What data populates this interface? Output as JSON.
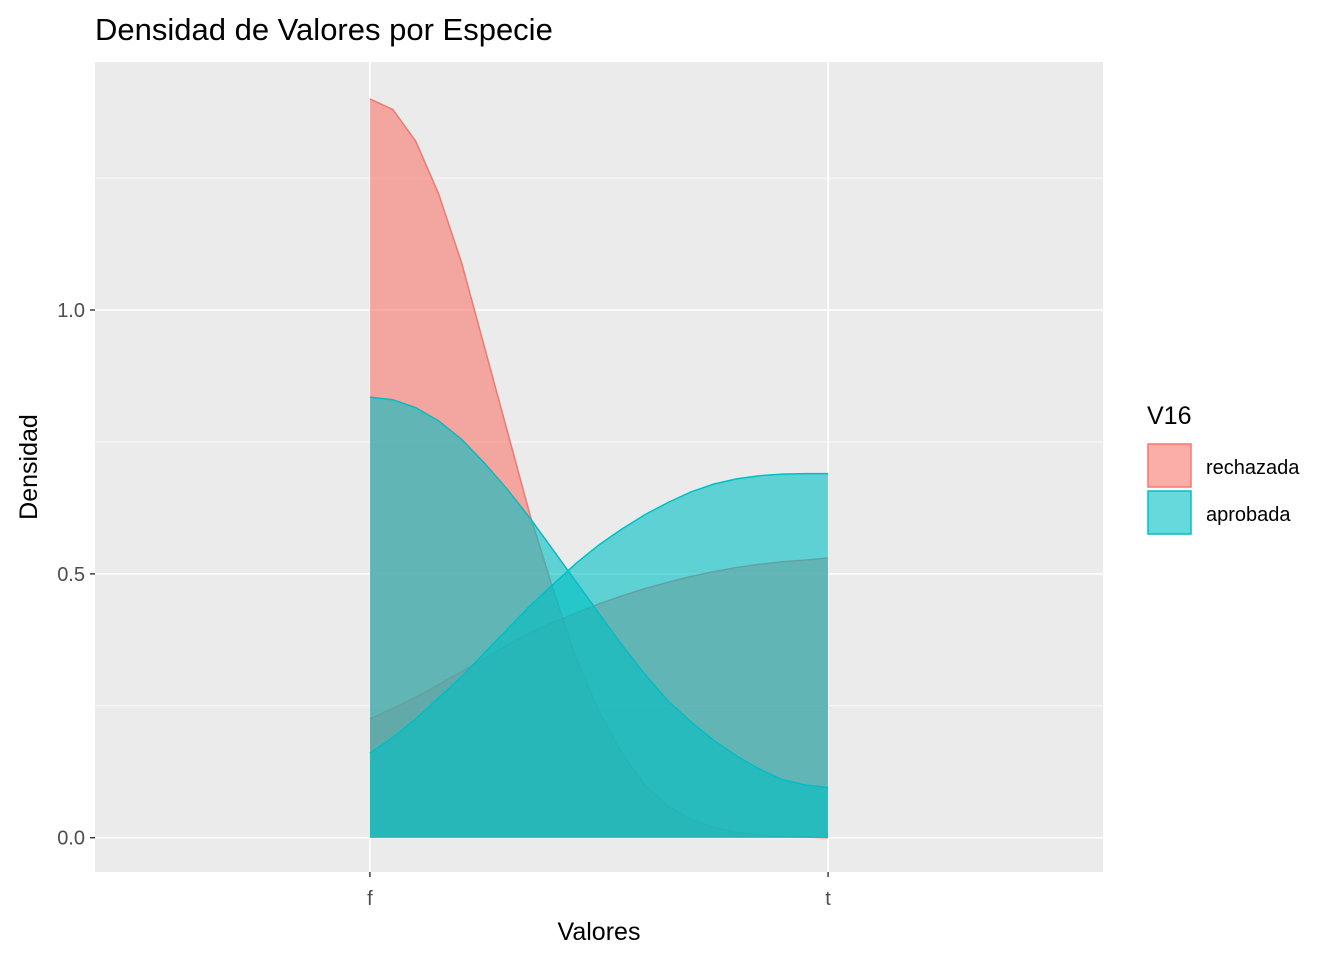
{
  "chart_data": {
    "type": "area",
    "title": "Densidad de Valores por Especie",
    "xlabel": "Valores",
    "ylabel": "Densidad",
    "x_tick_labels": [
      "f",
      "t"
    ],
    "y_ticks": [
      0.0,
      0.5,
      1.0
    ],
    "y_tick_labels": [
      "0.0",
      "0.5",
      "1.0"
    ],
    "ylim": [
      -0.065,
      1.47
    ],
    "xlim": [
      -0.6,
      1.6
    ],
    "grid": true,
    "legend": {
      "title": "V16",
      "position": "right"
    },
    "series": [
      {
        "name": "rechazada",
        "color": "#F8766D",
        "fill": "#F8766D",
        "x": [
          0,
          0.05,
          0.1,
          0.15,
          0.2,
          0.25,
          0.3,
          0.35,
          0.4,
          0.45,
          0.5,
          0.55,
          0.6,
          0.65,
          0.7,
          0.75,
          0.8,
          0.85,
          0.9,
          0.95,
          1.0
        ],
        "values": [
          1.4,
          1.38,
          1.32,
          1.22,
          1.09,
          0.93,
          0.77,
          0.61,
          0.47,
          0.34,
          0.24,
          0.16,
          0.1,
          0.06,
          0.035,
          0.02,
          0.01,
          0.005,
          0.002,
          0.001,
          0.0
        ]
      },
      {
        "name": "rechazada",
        "color": "#F8766D",
        "fill": "#F8766D",
        "x": [
          0,
          0.05,
          0.1,
          0.15,
          0.2,
          0.25,
          0.3,
          0.35,
          0.4,
          0.45,
          0.5,
          0.55,
          0.6,
          0.65,
          0.7,
          0.75,
          0.8,
          0.85,
          0.9,
          0.95,
          1.0
        ],
        "values": [
          0.225,
          0.245,
          0.266,
          0.29,
          0.315,
          0.34,
          0.365,
          0.388,
          0.408,
          0.426,
          0.443,
          0.458,
          0.472,
          0.484,
          0.495,
          0.504,
          0.512,
          0.518,
          0.523,
          0.526,
          0.53
        ]
      },
      {
        "name": "aprobada",
        "color": "#00BFC4",
        "fill": "#00BFC4",
        "x": [
          0,
          0.05,
          0.1,
          0.15,
          0.2,
          0.25,
          0.3,
          0.35,
          0.4,
          0.45,
          0.5,
          0.55,
          0.6,
          0.65,
          0.7,
          0.75,
          0.8,
          0.85,
          0.9,
          0.95,
          1.0
        ],
        "values": [
          0.835,
          0.83,
          0.815,
          0.79,
          0.755,
          0.71,
          0.66,
          0.605,
          0.545,
          0.485,
          0.425,
          0.365,
          0.31,
          0.26,
          0.22,
          0.185,
          0.155,
          0.13,
          0.11,
          0.1,
          0.095
        ]
      },
      {
        "name": "aprobada",
        "color": "#00BFC4",
        "fill": "#00BFC4",
        "x": [
          0,
          0.05,
          0.1,
          0.15,
          0.2,
          0.25,
          0.3,
          0.35,
          0.4,
          0.45,
          0.5,
          0.55,
          0.6,
          0.65,
          0.7,
          0.75,
          0.8,
          0.85,
          0.9,
          0.95,
          1.0
        ],
        "values": [
          0.16,
          0.19,
          0.225,
          0.265,
          0.305,
          0.35,
          0.395,
          0.44,
          0.48,
          0.52,
          0.555,
          0.585,
          0.612,
          0.635,
          0.655,
          0.67,
          0.68,
          0.686,
          0.689,
          0.69,
          0.69
        ]
      }
    ]
  }
}
